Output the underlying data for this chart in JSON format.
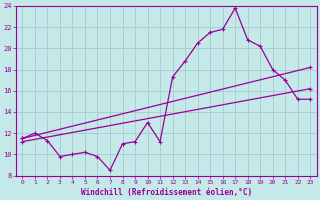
{
  "title": "",
  "xlabel": "Windchill (Refroidissement éolien,°C)",
  "ylabel": "",
  "xlim": [
    -0.5,
    23.5
  ],
  "ylim": [
    8,
    24
  ],
  "xticks": [
    0,
    1,
    2,
    3,
    4,
    5,
    6,
    7,
    8,
    9,
    10,
    11,
    12,
    13,
    14,
    15,
    16,
    17,
    18,
    19,
    20,
    21,
    22,
    23
  ],
  "yticks": [
    8,
    10,
    12,
    14,
    16,
    18,
    20,
    22,
    24
  ],
  "bg_color": "#c5e8e8",
  "grid_color": "#a8d0d0",
  "line_color": "#990099",
  "line1_x": [
    0,
    1,
    2,
    3,
    4,
    5,
    6,
    7,
    8,
    9,
    10,
    11,
    12,
    13,
    14,
    15,
    16,
    17,
    18,
    19,
    20,
    21,
    22,
    23
  ],
  "line1_y": [
    11.5,
    12.0,
    11.3,
    9.8,
    10.0,
    10.2,
    9.8,
    8.5,
    11.0,
    11.2,
    13.0,
    11.2,
    17.3,
    18.8,
    20.5,
    21.5,
    21.8,
    23.8,
    20.8,
    20.2,
    18.0,
    17.0,
    15.2,
    15.2
  ],
  "line2_x": [
    0,
    23
  ],
  "line2_y": [
    11.5,
    18.2
  ],
  "line3_x": [
    0,
    23
  ],
  "line3_y": [
    11.2,
    16.2
  ]
}
